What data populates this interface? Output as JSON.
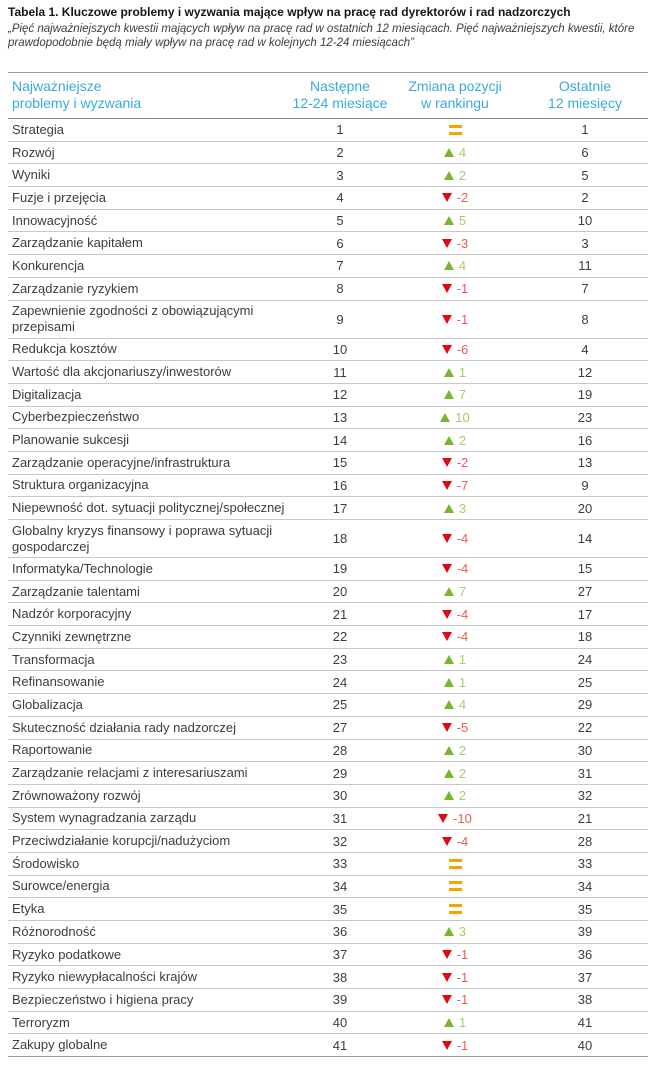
{
  "document": {
    "title": "Tabela 1. Kluczowe problemy i wyzwania mające wpływ na pracę rad dyrektorów i rad nadzorczych",
    "subtitle": "„Pięć najważniejszych kwestii mających wpływ na pracę rad w ostatnich 12 miesiącach. Pięć najważniejszych kwestii, które prawdopodobnie będą miały wpływ na pracę rad w kolejnych 12-24 miesiącach”"
  },
  "colors": {
    "header_text": "#39a9dc",
    "up_arrow": "#76b82a",
    "up_value": "#a9cd6b",
    "down_arrow": "#e30613",
    "down_value": "#e85d55",
    "no_change": "#f7a400",
    "row_text": "#3d3d3c"
  },
  "table": {
    "columns": {
      "issue": {
        "line1": "Najważniejsze",
        "line2": "problemy i wyzwania"
      },
      "next": {
        "line1": "Następne",
        "line2": "12-24 miesiące"
      },
      "change": {
        "line1": "Zmiana pozycji",
        "line2": "w rankingu"
      },
      "last": {
        "line1": "Ostatnie",
        "line2": "12 miesięcy"
      }
    },
    "rows": [
      {
        "issue": "Strategia",
        "next": "1",
        "direction": "same",
        "change": "",
        "last": "1"
      },
      {
        "issue": "Rozwój",
        "next": "2",
        "direction": "up",
        "change": "4",
        "last": "6"
      },
      {
        "issue": "Wyniki",
        "next": "3",
        "direction": "up",
        "change": "2",
        "last": "5"
      },
      {
        "issue": "Fuzje i przejęcia",
        "next": "4",
        "direction": "down",
        "change": "-2",
        "last": "2"
      },
      {
        "issue": "Innowacyjność",
        "next": "5",
        "direction": "up",
        "change": "5",
        "last": "10"
      },
      {
        "issue": "Zarządzanie kapitałem",
        "next": "6",
        "direction": "down",
        "change": "-3",
        "last": "3"
      },
      {
        "issue": "Konkurencja",
        "next": "7",
        "direction": "up",
        "change": "4",
        "last": "11"
      },
      {
        "issue": "Zarządzanie ryzykiem",
        "next": "8",
        "direction": "down",
        "change": "-1",
        "last": "7"
      },
      {
        "issue": "Zapewnienie zgodności z obowiązującymi przepisami",
        "next": "9",
        "direction": "down",
        "change": "-1",
        "last": "8"
      },
      {
        "issue": "Redukcja kosztów",
        "next": "10",
        "direction": "down",
        "change": "-6",
        "last": "4"
      },
      {
        "issue": "Wartość dla akcjonariuszy/inwestorów",
        "next": "11",
        "direction": "up",
        "change": "1",
        "last": "12"
      },
      {
        "issue": "Digitalizacja",
        "next": "12",
        "direction": "up",
        "change": "7",
        "last": "19"
      },
      {
        "issue": "Cyberbezpieczeństwo",
        "next": "13",
        "direction": "up",
        "change": "10",
        "last": "23"
      },
      {
        "issue": "Planowanie sukcesji",
        "next": "14",
        "direction": "up",
        "change": "2",
        "last": "16"
      },
      {
        "issue": "Zarządzanie operacyjne/infrastruktura",
        "next": "15",
        "direction": "down",
        "change": "-2",
        "last": "13"
      },
      {
        "issue": "Struktura organizacyjna",
        "next": "16",
        "direction": "down",
        "change": "-7",
        "last": "9"
      },
      {
        "issue": "Niepewność dot. sytuacji politycznej/społecznej",
        "next": "17",
        "direction": "up",
        "change": "3",
        "last": "20"
      },
      {
        "issue": "Globalny kryzys finansowy i poprawa sytuacji gospodarczej",
        "next": "18",
        "direction": "down",
        "change": "-4",
        "last": "14"
      },
      {
        "issue": "Informatyka/Technologie",
        "next": "19",
        "direction": "down",
        "change": "-4",
        "last": "15"
      },
      {
        "issue": "Zarządzanie talentami",
        "next": "20",
        "direction": "up",
        "change": "7",
        "last": "27"
      },
      {
        "issue": "Nadzór korporacyjny",
        "next": "21",
        "direction": "down",
        "change": "-4",
        "last": "17"
      },
      {
        "issue": "Czynniki zewnętrzne",
        "next": "22",
        "direction": "down",
        "change": "-4",
        "last": "18"
      },
      {
        "issue": "Transformacja",
        "next": "23",
        "direction": "up",
        "change": "1",
        "last": "24"
      },
      {
        "issue": "Refinansowanie",
        "next": "24",
        "direction": "up",
        "change": "1",
        "last": "25"
      },
      {
        "issue": "Globalizacja",
        "next": "25",
        "direction": "up",
        "change": "4",
        "last": "29"
      },
      {
        "issue": "Skuteczność działania rady nadzorczej",
        "next": "27",
        "direction": "down",
        "change": "-5",
        "last": "22"
      },
      {
        "issue": "Raportowanie",
        "next": "28",
        "direction": "up",
        "change": "2",
        "last": "30"
      },
      {
        "issue": "Zarządzanie relacjami z interesariuszami",
        "next": "29",
        "direction": "up",
        "change": "2",
        "last": "31"
      },
      {
        "issue": "Zrównoważony rozwój",
        "next": "30",
        "direction": "up",
        "change": "2",
        "last": "32"
      },
      {
        "issue": "System wynagradzania zarządu",
        "next": "31",
        "direction": "down",
        "change": "-10",
        "last": "21"
      },
      {
        "issue": "Przeciwdziałanie korupcji/nadużyciom",
        "next": "32",
        "direction": "down",
        "change": "-4",
        "last": "28"
      },
      {
        "issue": "Środowisko",
        "next": "33",
        "direction": "same",
        "change": "",
        "last": "33"
      },
      {
        "issue": "Surowce/energia",
        "next": "34",
        "direction": "same",
        "change": "",
        "last": "34"
      },
      {
        "issue": "Etyka",
        "next": "35",
        "direction": "same",
        "change": "",
        "last": "35"
      },
      {
        "issue": "Różnorodność",
        "next": "36",
        "direction": "up",
        "change": "3",
        "last": "39"
      },
      {
        "issue": "Ryzyko podatkowe",
        "next": "37",
        "direction": "down",
        "change": "-1",
        "last": "36"
      },
      {
        "issue": "Ryzyko niewypłacalności krajów",
        "next": "38",
        "direction": "down",
        "change": "-1",
        "last": "37"
      },
      {
        "issue": "Bezpieczeństwo i higiena pracy",
        "next": "39",
        "direction": "down",
        "change": "-1",
        "last": "38"
      },
      {
        "issue": "Terroryzm",
        "next": "40",
        "direction": "up",
        "change": "1",
        "last": "41"
      },
      {
        "issue": "Zakupy globalne",
        "next": "41",
        "direction": "down",
        "change": "-1",
        "last": "40"
      }
    ]
  }
}
